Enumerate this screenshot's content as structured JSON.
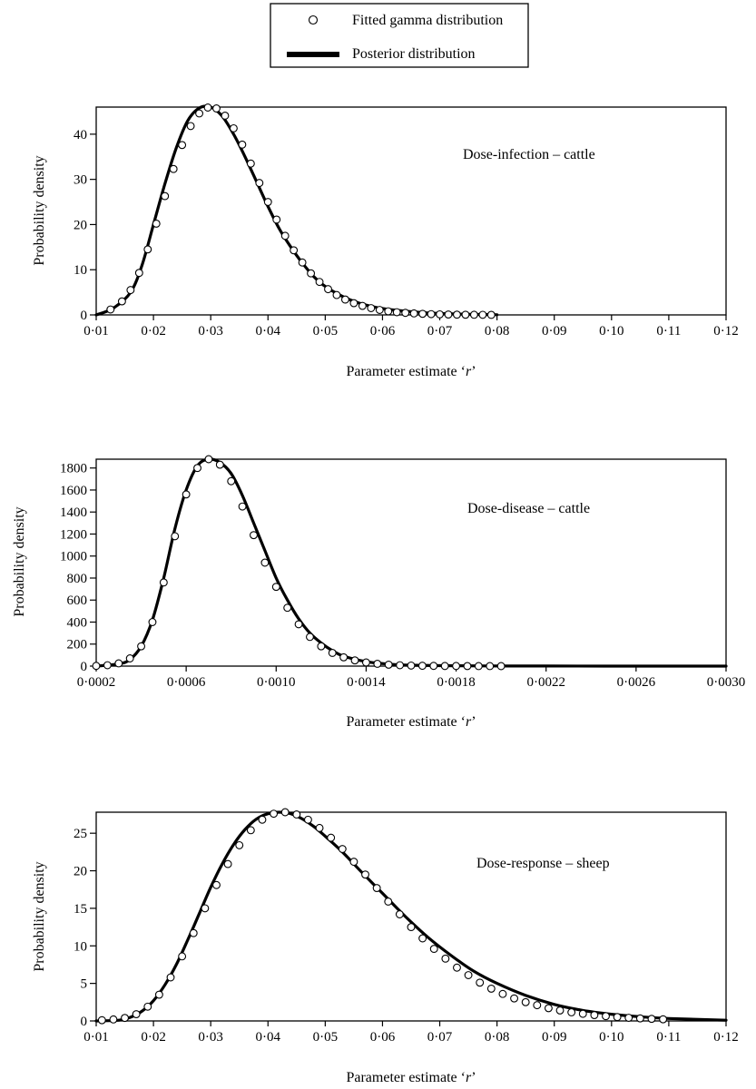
{
  "legend": {
    "entries": [
      {
        "name": "Fitted gamma distribution",
        "marker": "open-circle"
      },
      {
        "name": "Posterior distribution",
        "marker": "thick-line"
      }
    ],
    "placement": "top-center"
  },
  "colors": {
    "line": "#000000",
    "marker_fill": "#ffffff",
    "background": "#ffffff"
  },
  "chart_data": [
    {
      "type": "line",
      "annotation": "Dose-infection – cattle",
      "xlabel_prefix": "Parameter estimate ‘",
      "xlabel_var": "r",
      "xlabel_suffix": "’",
      "ylabel": "Probability density",
      "xlim": [
        0.01,
        0.12
      ],
      "ylim": [
        0,
        46
      ],
      "xticks": [
        0.01,
        0.02,
        0.03,
        0.04,
        0.05,
        0.06,
        0.07,
        0.08,
        0.09,
        0.1,
        0.11,
        0.12
      ],
      "xtick_labels": [
        "0·01",
        "0·02",
        "0·03",
        "0·04",
        "0·05",
        "0·06",
        "0·07",
        "0·08",
        "0·09",
        "0·10",
        "0·11",
        "0·12"
      ],
      "yticks": [
        0,
        10,
        20,
        30,
        40
      ],
      "ytick_labels": [
        "0",
        "10",
        "20",
        "30",
        "40"
      ],
      "grid": false,
      "series": [
        {
          "role": "posterior",
          "x": [
            0.01,
            0.013,
            0.016,
            0.018,
            0.02,
            0.022,
            0.024,
            0.026,
            0.028,
            0.03,
            0.032,
            0.034,
            0.036,
            0.038,
            0.04,
            0.042,
            0.044,
            0.046,
            0.048,
            0.05,
            0.053,
            0.056,
            0.06,
            0.065,
            0.07,
            0.075,
            0.08
          ],
          "y": [
            0,
            1.5,
            5,
            11,
            20,
            29,
            37,
            43,
            45.8,
            46,
            44,
            40,
            35,
            29.5,
            24,
            19,
            15,
            11.5,
            8.5,
            6.3,
            4.1,
            2.6,
            1.4,
            0.7,
            0.3,
            0.15,
            0.05
          ]
        },
        {
          "role": "fitted",
          "x": [
            0.0125,
            0.0145,
            0.016,
            0.0175,
            0.019,
            0.0205,
            0.022,
            0.0235,
            0.025,
            0.0265,
            0.028,
            0.0295,
            0.031,
            0.0325,
            0.034,
            0.0355,
            0.037,
            0.0385,
            0.04,
            0.0415,
            0.043,
            0.0445,
            0.046,
            0.0475,
            0.049,
            0.0505,
            0.052,
            0.0535,
            0.055,
            0.0565,
            0.058,
            0.0595,
            0.061,
            0.0625,
            0.064,
            0.0655,
            0.067,
            0.0685,
            0.07,
            0.0715,
            0.073,
            0.0745,
            0.076,
            0.0775,
            0.079
          ],
          "y": [
            1.2,
            3.0,
            5.5,
            9.3,
            14.5,
            20.2,
            26.3,
            32.3,
            37.6,
            41.8,
            44.6,
            45.9,
            45.7,
            44.1,
            41.3,
            37.7,
            33.5,
            29.2,
            25.0,
            21.1,
            17.5,
            14.3,
            11.6,
            9.2,
            7.3,
            5.7,
            4.4,
            3.4,
            2.6,
            2.0,
            1.5,
            1.1,
            0.8,
            0.6,
            0.45,
            0.33,
            0.24,
            0.17,
            0.12,
            0.09,
            0.06,
            0.04,
            0.03,
            0.02,
            0.01
          ]
        }
      ]
    },
    {
      "type": "line",
      "annotation": "Dose-disease – cattle",
      "xlabel_prefix": "Parameter estimate ‘",
      "xlabel_var": "r",
      "xlabel_suffix": "’",
      "ylabel": "Probability density",
      "xlim": [
        0.0002,
        0.003
      ],
      "ylim": [
        0,
        1880
      ],
      "xticks": [
        0.0002,
        0.0006,
        0.001,
        0.0014,
        0.0018,
        0.0022,
        0.0026,
        0.003
      ],
      "xtick_labels": [
        "0·0002",
        "0·0006",
        "0·0010",
        "0·0014",
        "0·0018",
        "0·0022",
        "0·0026",
        "0·0030"
      ],
      "yticks": [
        0,
        200,
        400,
        600,
        800,
        1000,
        1200,
        1400,
        1600,
        1800
      ],
      "ytick_labels": [
        "0",
        "200",
        "400",
        "600",
        "800",
        "1000",
        "1200",
        "1400",
        "1600",
        "1800"
      ],
      "grid": false,
      "series": [
        {
          "role": "posterior",
          "x": [
            0.0002,
            0.0003,
            0.00035,
            0.0004,
            0.00045,
            0.0005,
            0.00055,
            0.0006,
            0.00065,
            0.0007,
            0.00075,
            0.0008,
            0.00085,
            0.0009,
            0.00095,
            0.001,
            0.00105,
            0.0011,
            0.00115,
            0.0012,
            0.00125,
            0.0013,
            0.0014,
            0.0015,
            0.0016,
            0.0018,
            0.002,
            0.0022,
            0.0026,
            0.003
          ],
          "y": [
            0,
            20,
            60,
            180,
            420,
            800,
            1250,
            1600,
            1820,
            1880,
            1850,
            1750,
            1550,
            1300,
            1050,
            800,
            600,
            430,
            300,
            210,
            140,
            90,
            40,
            18,
            8,
            3,
            1,
            0.5,
            0.2,
            0
          ]
        },
        {
          "role": "fitted",
          "x": [
            0.0002,
            0.00025,
            0.0003,
            0.00035,
            0.0004,
            0.00045,
            0.0005,
            0.00055,
            0.0006,
            0.00065,
            0.0007,
            0.00075,
            0.0008,
            0.00085,
            0.0009,
            0.00095,
            0.001,
            0.00105,
            0.0011,
            0.00115,
            0.0012,
            0.00125,
            0.0013,
            0.00135,
            0.0014,
            0.00145,
            0.0015,
            0.00155,
            0.0016,
            0.00165,
            0.0017,
            0.00175,
            0.0018,
            0.00185,
            0.0019,
            0.00195,
            0.002
          ],
          "y": [
            2,
            8,
            25,
            70,
            180,
            400,
            760,
            1180,
            1560,
            1800,
            1880,
            1830,
            1680,
            1450,
            1190,
            940,
            720,
            530,
            380,
            265,
            180,
            120,
            80,
            52,
            33,
            21,
            13,
            8,
            5,
            3,
            2,
            1,
            1,
            0.5,
            0.3,
            0.2,
            0.1
          ]
        }
      ]
    },
    {
      "type": "line",
      "annotation": "Dose-response – sheep",
      "xlabel_prefix": "Parameter estimate ‘",
      "xlabel_var": "r",
      "xlabel_suffix": "’",
      "ylabel": "Probability density",
      "xlim": [
        0.01,
        0.12
      ],
      "ylim": [
        0,
        27.8
      ],
      "xticks": [
        0.01,
        0.02,
        0.03,
        0.04,
        0.05,
        0.06,
        0.07,
        0.08,
        0.09,
        0.1,
        0.11,
        0.12
      ],
      "xtick_labels": [
        "0·01",
        "0·02",
        "0·03",
        "0·04",
        "0·05",
        "0·06",
        "0·07",
        "0·08",
        "0·09",
        "0·10",
        "0·11",
        "0·12"
      ],
      "yticks": [
        0,
        5,
        10,
        15,
        20,
        25
      ],
      "ytick_labels": [
        "0",
        "5",
        "10",
        "15",
        "20",
        "25"
      ],
      "grid": false,
      "series": [
        {
          "role": "posterior",
          "x": [
            0.01,
            0.014,
            0.016,
            0.018,
            0.02,
            0.022,
            0.024,
            0.026,
            0.028,
            0.03,
            0.032,
            0.034,
            0.036,
            0.038,
            0.04,
            0.042,
            0.044,
            0.046,
            0.048,
            0.05,
            0.053,
            0.056,
            0.06,
            0.064,
            0.068,
            0.072,
            0.076,
            0.08,
            0.085,
            0.09,
            0.095,
            0.1,
            0.105,
            0.11,
            0.12
          ],
          "y": [
            0,
            0.1,
            0.5,
            1.3,
            2.7,
            4.8,
            7.5,
            10.8,
            14.3,
            17.8,
            20.9,
            23.5,
            25.5,
            26.9,
            27.6,
            27.8,
            27.6,
            26.9,
            25.9,
            24.6,
            22.5,
            20.1,
            17.0,
            13.9,
            11.1,
            8.7,
            6.6,
            5.0,
            3.4,
            2.2,
            1.4,
            0.9,
            0.55,
            0.33,
            0.1
          ]
        },
        {
          "role": "fitted",
          "x": [
            0.011,
            0.013,
            0.015,
            0.017,
            0.019,
            0.021,
            0.023,
            0.025,
            0.027,
            0.029,
            0.031,
            0.033,
            0.035,
            0.037,
            0.039,
            0.041,
            0.043,
            0.045,
            0.047,
            0.049,
            0.051,
            0.053,
            0.055,
            0.057,
            0.059,
            0.061,
            0.063,
            0.065,
            0.067,
            0.069,
            0.071,
            0.073,
            0.075,
            0.077,
            0.079,
            0.081,
            0.083,
            0.085,
            0.087,
            0.089,
            0.091,
            0.093,
            0.095,
            0.097,
            0.099,
            0.101,
            0.103,
            0.105,
            0.107,
            0.109
          ],
          "y": [
            0.1,
            0.2,
            0.4,
            0.9,
            1.9,
            3.5,
            5.8,
            8.6,
            11.7,
            15.0,
            18.1,
            20.9,
            23.4,
            25.4,
            26.8,
            27.6,
            27.8,
            27.5,
            26.8,
            25.7,
            24.4,
            22.9,
            21.2,
            19.5,
            17.7,
            15.9,
            14.2,
            12.5,
            11.0,
            9.6,
            8.3,
            7.1,
            6.1,
            5.1,
            4.3,
            3.6,
            3.0,
            2.5,
            2.1,
            1.7,
            1.4,
            1.15,
            0.95,
            0.78,
            0.64,
            0.52,
            0.42,
            0.34,
            0.28,
            0.22
          ]
        }
      ]
    }
  ]
}
